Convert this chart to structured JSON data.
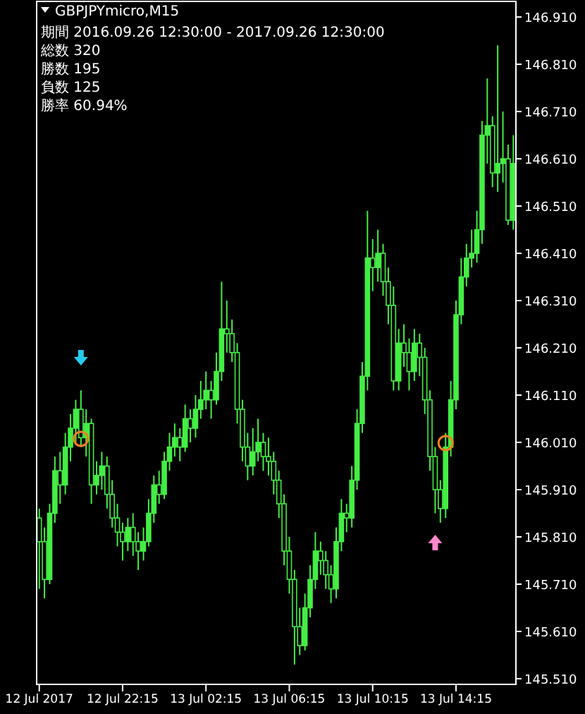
{
  "chart_data": {
    "type": "candlestick",
    "title": "GBPJPYmicro,M15",
    "annotations": [
      "期間 2016.09.26 12:30:00 - 2017.09.26 12:30:00",
      "総数 320",
      "勝数 195",
      "負数 125",
      "勝率 60.94%"
    ],
    "categories": [
      "12 Jul 2017",
      null,
      null,
      null,
      null,
      null,
      null,
      null,
      null,
      null,
      null,
      null,
      null,
      null,
      null,
      null,
      "12 Jul 22:15",
      null,
      null,
      null,
      null,
      null,
      null,
      null,
      null,
      null,
      null,
      null,
      null,
      null,
      null,
      null,
      "13 Jul 02:15",
      null,
      null,
      null,
      null,
      null,
      null,
      null,
      null,
      null,
      null,
      null,
      null,
      null,
      null,
      null,
      "13 Jul 06:15",
      null,
      null,
      null,
      null,
      null,
      null,
      null,
      null,
      null,
      null,
      null,
      null,
      null,
      null,
      null,
      "13 Jul 10:15",
      null,
      null,
      null,
      null,
      null,
      null,
      null,
      null,
      null,
      null,
      null,
      null,
      null,
      null,
      null,
      "13 Jul 14:15",
      null,
      null,
      null,
      null,
      null,
      null,
      null,
      null,
      null,
      null,
      null
    ],
    "ohlc": [
      [
        145.85,
        145.87,
        145.7,
        145.8
      ],
      [
        145.8,
        145.83,
        145.68,
        145.72
      ],
      [
        145.72,
        145.88,
        145.71,
        145.86
      ],
      [
        145.86,
        145.98,
        145.84,
        145.95
      ],
      [
        145.95,
        145.99,
        145.88,
        145.92
      ],
      [
        145.92,
        146.03,
        145.9,
        146.0
      ],
      [
        146.0,
        146.07,
        145.97,
        146.04
      ],
      [
        146.04,
        146.1,
        146.01,
        146.08
      ],
      [
        146.08,
        146.12,
        146.0,
        146.02
      ],
      [
        146.02,
        146.08,
        145.98,
        146.05
      ],
      [
        146.05,
        146.06,
        145.88,
        145.92
      ],
      [
        145.92,
        145.97,
        145.9,
        145.94
      ],
      [
        145.94,
        145.99,
        145.91,
        145.96
      ],
      [
        145.96,
        145.98,
        145.87,
        145.9
      ],
      [
        145.9,
        145.93,
        145.83,
        145.85
      ],
      [
        145.85,
        145.88,
        145.79,
        145.82
      ],
      [
        145.82,
        145.84,
        145.76,
        145.8
      ],
      [
        145.8,
        145.85,
        145.78,
        145.83
      ],
      [
        145.83,
        145.86,
        145.77,
        145.8
      ],
      [
        145.8,
        145.82,
        145.74,
        145.78
      ],
      [
        145.78,
        145.83,
        145.76,
        145.8
      ],
      [
        145.8,
        145.89,
        145.79,
        145.86
      ],
      [
        145.86,
        145.94,
        145.84,
        145.92
      ],
      [
        145.92,
        145.95,
        145.88,
        145.9
      ],
      [
        145.9,
        145.99,
        145.89,
        145.97
      ],
      [
        145.97,
        146.03,
        145.95,
        146.0
      ],
      [
        146.0,
        146.05,
        145.98,
        146.02
      ],
      [
        146.02,
        146.04,
        145.97,
        146.0
      ],
      [
        146.0,
        146.09,
        145.99,
        146.06
      ],
      [
        146.06,
        146.08,
        146.01,
        146.04
      ],
      [
        146.04,
        146.11,
        146.02,
        146.08
      ],
      [
        146.08,
        146.14,
        146.06,
        146.1
      ],
      [
        146.1,
        146.16,
        146.08,
        146.12
      ],
      [
        146.12,
        146.14,
        146.06,
        146.1
      ],
      [
        146.1,
        146.2,
        146.09,
        146.16
      ],
      [
        146.16,
        146.35,
        146.14,
        146.25
      ],
      [
        146.25,
        146.31,
        146.2,
        146.24
      ],
      [
        146.24,
        146.27,
        146.18,
        146.2
      ],
      [
        146.2,
        146.22,
        146.05,
        146.08
      ],
      [
        146.08,
        146.1,
        145.97,
        146.0
      ],
      [
        146.0,
        146.03,
        145.93,
        145.96
      ],
      [
        145.96,
        146.04,
        145.94,
        145.99
      ],
      [
        145.99,
        146.06,
        145.97,
        146.01
      ],
      [
        146.01,
        146.03,
        145.95,
        145.98
      ],
      [
        145.98,
        146.02,
        145.94,
        145.97
      ],
      [
        145.97,
        145.99,
        145.9,
        145.93
      ],
      [
        145.93,
        145.95,
        145.85,
        145.88
      ],
      [
        145.88,
        145.9,
        145.75,
        145.78
      ],
      [
        145.78,
        145.81,
        145.69,
        145.72
      ],
      [
        145.72,
        145.74,
        145.54,
        145.62
      ],
      [
        145.62,
        145.66,
        145.56,
        145.58
      ],
      [
        145.58,
        145.69,
        145.57,
        145.66
      ],
      [
        145.66,
        145.75,
        145.64,
        145.72
      ],
      [
        145.72,
        145.82,
        145.7,
        145.78
      ],
      [
        145.78,
        145.8,
        145.73,
        145.76
      ],
      [
        145.76,
        145.78,
        145.7,
        145.73
      ],
      [
        145.73,
        145.75,
        145.67,
        145.7
      ],
      [
        145.7,
        145.83,
        145.68,
        145.8
      ],
      [
        145.8,
        145.89,
        145.78,
        145.86
      ],
      [
        145.86,
        145.88,
        145.82,
        145.85
      ],
      [
        145.85,
        145.96,
        145.83,
        145.93
      ],
      [
        145.93,
        146.08,
        145.91,
        146.05
      ],
      [
        146.05,
        146.18,
        146.03,
        146.15
      ],
      [
        146.15,
        146.5,
        146.12,
        146.4
      ],
      [
        146.4,
        146.44,
        146.33,
        146.38
      ],
      [
        146.38,
        146.46,
        146.35,
        146.41
      ],
      [
        146.41,
        146.43,
        146.32,
        146.35
      ],
      [
        146.35,
        146.38,
        146.26,
        146.3
      ],
      [
        146.3,
        146.34,
        146.12,
        146.14
      ],
      [
        146.14,
        146.25,
        146.12,
        146.22
      ],
      [
        146.22,
        146.26,
        146.17,
        146.2
      ],
      [
        146.2,
        146.23,
        146.12,
        146.16
      ],
      [
        146.16,
        146.25,
        146.14,
        146.22
      ],
      [
        146.22,
        146.24,
        146.15,
        146.19
      ],
      [
        146.19,
        146.21,
        146.07,
        146.1
      ],
      [
        146.1,
        146.12,
        145.95,
        145.98
      ],
      [
        145.98,
        146.0,
        145.86,
        145.91
      ],
      [
        145.91,
        145.93,
        145.84,
        145.87
      ],
      [
        145.87,
        146.03,
        145.85,
        146.0
      ],
      [
        146.0,
        146.14,
        145.98,
        146.1
      ],
      [
        146.1,
        146.31,
        146.08,
        146.28
      ],
      [
        146.28,
        146.4,
        146.26,
        146.36
      ],
      [
        146.36,
        146.43,
        146.34,
        146.4
      ],
      [
        146.4,
        146.46,
        146.38,
        146.41
      ],
      [
        146.41,
        146.5,
        146.39,
        146.46
      ],
      [
        146.46,
        146.69,
        146.43,
        146.66
      ],
      [
        146.66,
        146.78,
        146.6,
        146.68
      ],
      [
        146.68,
        146.7,
        146.55,
        146.58
      ],
      [
        146.58,
        146.85,
        146.54,
        146.6
      ],
      [
        146.6,
        146.71,
        146.56,
        146.61
      ],
      [
        146.61,
        146.64,
        146.47,
        146.48
      ],
      [
        146.48,
        146.66,
        146.46,
        146.6
      ]
    ],
    "color": "#44ee44",
    "ylim": [
      145.498,
      146.943
    ],
    "yticks": [
      {
        "value": 145.51,
        "label": "145.510"
      },
      {
        "value": 145.61,
        "label": "145.610"
      },
      {
        "value": 145.71,
        "label": "145.710"
      },
      {
        "value": 145.81,
        "label": "145.810"
      },
      {
        "value": 145.91,
        "label": "145.910"
      },
      {
        "value": 146.01,
        "label": "146.010"
      },
      {
        "value": 146.11,
        "label": "146.110"
      },
      {
        "value": 146.21,
        "label": "146.210"
      },
      {
        "value": 146.31,
        "label": "146.310"
      },
      {
        "value": 146.41,
        "label": "146.410"
      },
      {
        "value": 146.51,
        "label": "146.510"
      },
      {
        "value": 146.61,
        "label": "146.610"
      },
      {
        "value": 146.71,
        "label": "146.710"
      },
      {
        "value": 146.81,
        "label": "146.810"
      },
      {
        "value": 146.91,
        "label": "146.910"
      }
    ]
  }
}
